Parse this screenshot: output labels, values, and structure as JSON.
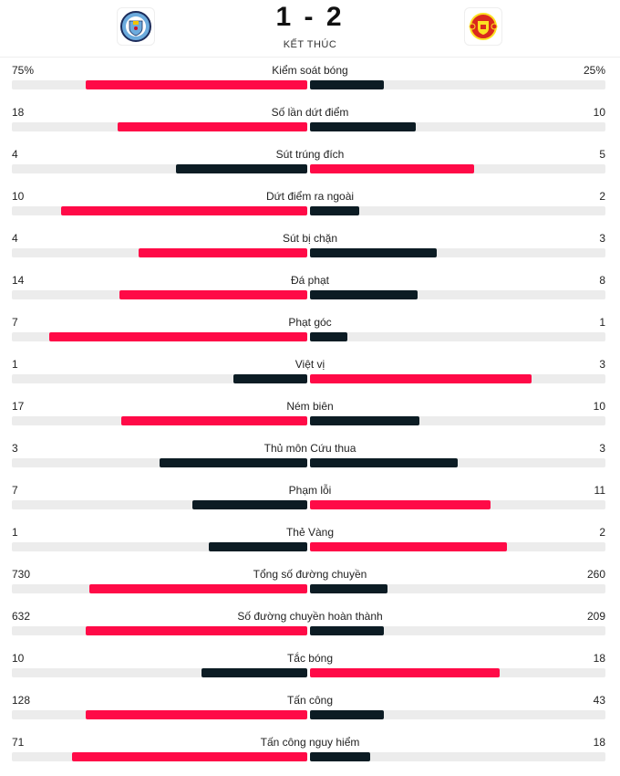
{
  "header": {
    "home_score": "1",
    "away_score": "2",
    "separator": "-",
    "status": "KẾT THÚC",
    "home_logo": "manchester-city-crest",
    "away_logo": "manchester-united-crest"
  },
  "colors": {
    "leader": "#ff0a47",
    "trailer": "#0c1c24",
    "track": "#ececec"
  },
  "stats": [
    {
      "label": "Kiểm soát bóng",
      "home": "75%",
      "away": "25%",
      "h": 75,
      "a": 25
    },
    {
      "label": "Số lần dứt điểm",
      "home": "18",
      "away": "10",
      "h": 18,
      "a": 10
    },
    {
      "label": "Sút trúng đích",
      "home": "4",
      "away": "5",
      "h": 4,
      "a": 5
    },
    {
      "label": "Dứt điểm ra ngoài",
      "home": "10",
      "away": "2",
      "h": 10,
      "a": 2
    },
    {
      "label": "Sút bị chặn",
      "home": "4",
      "away": "3",
      "h": 4,
      "a": 3
    },
    {
      "label": "Đá phạt",
      "home": "14",
      "away": "8",
      "h": 14,
      "a": 8
    },
    {
      "label": "Phạt góc",
      "home": "7",
      "away": "1",
      "h": 7,
      "a": 1
    },
    {
      "label": "Việt vị",
      "home": "1",
      "away": "3",
      "h": 1,
      "a": 3
    },
    {
      "label": "Ném biên",
      "home": "17",
      "away": "10",
      "h": 17,
      "a": 10
    },
    {
      "label": "Thủ môn Cứu thua",
      "home": "3",
      "away": "3",
      "h": 3,
      "a": 3
    },
    {
      "label": "Phạm lỗi",
      "home": "7",
      "away": "11",
      "h": 7,
      "a": 11
    },
    {
      "label": "Thẻ Vàng",
      "home": "1",
      "away": "2",
      "h": 1,
      "a": 2
    },
    {
      "label": "Tổng số đường chuyền",
      "home": "730",
      "away": "260",
      "h": 730,
      "a": 260
    },
    {
      "label": "Số đường chuyền hoàn thành",
      "home": "632",
      "away": "209",
      "h": 632,
      "a": 209
    },
    {
      "label": "Tắc bóng",
      "home": "10",
      "away": "18",
      "h": 10,
      "a": 18
    },
    {
      "label": "Tấn công",
      "home": "128",
      "away": "43",
      "h": 128,
      "a": 43
    },
    {
      "label": "Tấn công nguy hiểm",
      "home": "71",
      "away": "18",
      "h": 71,
      "a": 18
    }
  ]
}
